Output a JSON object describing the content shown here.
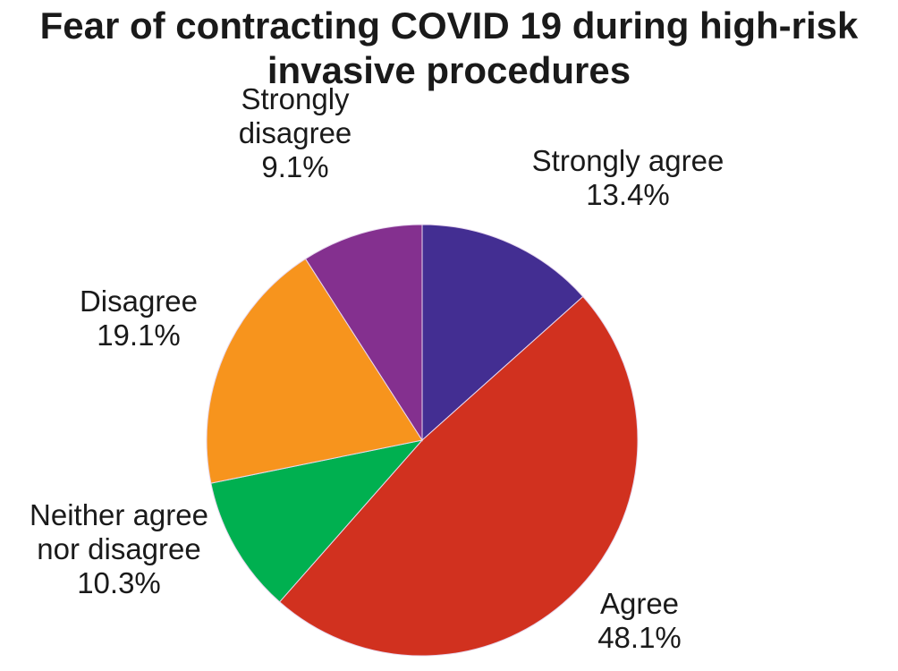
{
  "chart_data": {
    "type": "pie",
    "title": "Fear of contracting COVID 19 during high-risk invasive procedures",
    "title_lines": [
      "Fear of contracting COVID 19 during high-risk",
      "invasive procedures"
    ],
    "slices": [
      {
        "label": "Strongly agree",
        "label_lines": [
          "Strongly agree"
        ],
        "value": 13.4,
        "value_label": "13.4%",
        "color": "#432e92"
      },
      {
        "label": "Agree",
        "label_lines": [
          "Agree"
        ],
        "value": 48.1,
        "value_label": "48.1%",
        "color": "#d1311f"
      },
      {
        "label": "Neither agree nor disagree",
        "label_lines": [
          "Neither agree",
          "nor disagree"
        ],
        "value": 10.3,
        "value_label": "10.3%",
        "color": "#00b050"
      },
      {
        "label": "Disagree",
        "label_lines": [
          "Disagree"
        ],
        "value": 19.1,
        "value_label": "19.1%",
        "color": "#f7941d"
      },
      {
        "label": "Strongly disagree",
        "label_lines": [
          "Strongly",
          "disagree"
        ],
        "value": 9.1,
        "value_label": "9.1%",
        "color": "#84308f"
      }
    ],
    "start_angle": "12 o'clock",
    "direction": "clockwise",
    "legend": "none"
  }
}
